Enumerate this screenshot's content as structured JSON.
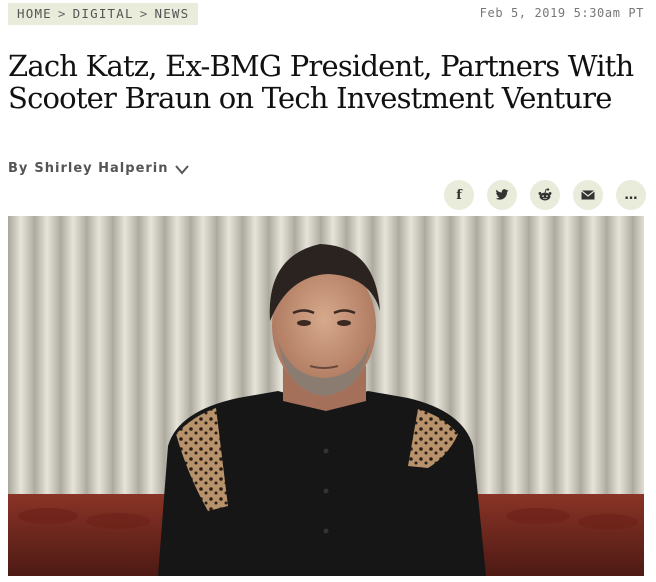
{
  "breadcrumb": {
    "items": [
      "HOME",
      "DIGITAL",
      "NEWS"
    ],
    "separator": ">"
  },
  "article": {
    "date": "Feb 5, 2019 5:30am PT",
    "headline": "Zach Katz, Ex-BMG President, Partners With Scooter Braun on Tech Investment Venture",
    "byline_prefix": "By",
    "author": "Shirley Halperin"
  },
  "share": {
    "icons": [
      "facebook-icon",
      "twitter-icon",
      "reddit-icon",
      "email-icon",
      "more-icon"
    ],
    "facebook": "f",
    "more": "…"
  },
  "colors": {
    "chip_bg": "#e9ebdb",
    "text": "#111111",
    "muted": "#777777"
  }
}
